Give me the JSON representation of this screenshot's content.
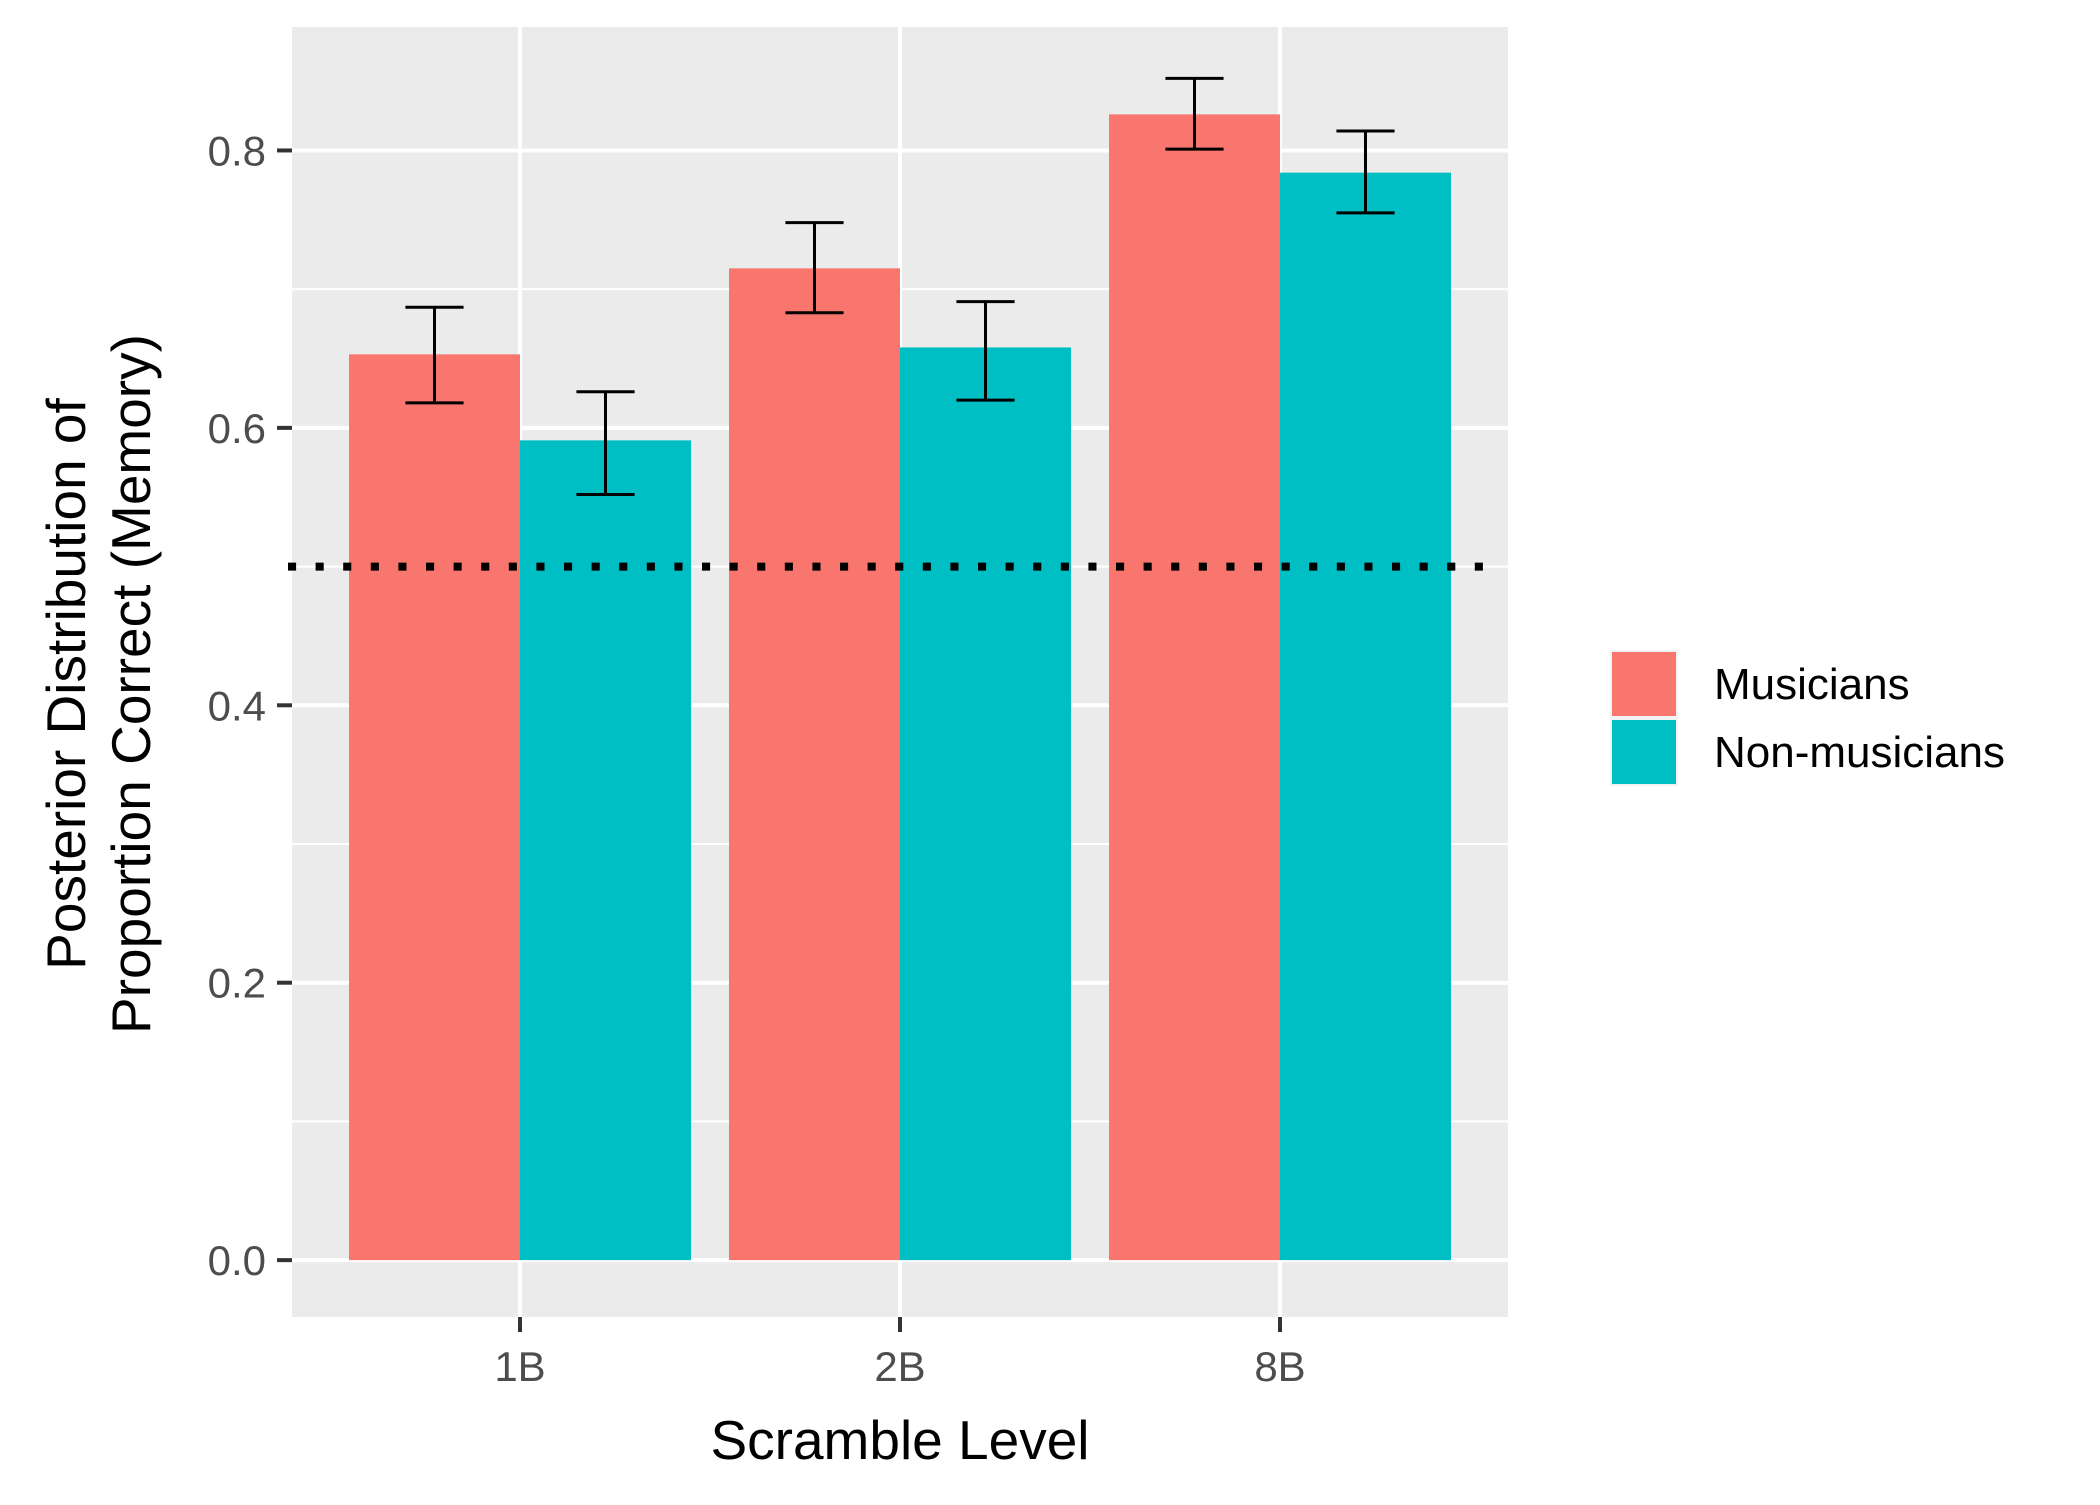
{
  "chart_data": {
    "type": "bar",
    "categories": [
      "1B",
      "2B",
      "8B"
    ],
    "series": [
      {
        "name": "Musicians",
        "color": "#F8766D",
        "values": [
          0.653,
          0.715,
          0.826
        ],
        "error_low": [
          0.618,
          0.683,
          0.801
        ],
        "error_high": [
          0.687,
          0.748,
          0.852
        ]
      },
      {
        "name": "Non-musicians",
        "color": "#00BFC4",
        "values": [
          0.591,
          0.658,
          0.784
        ],
        "error_low": [
          0.552,
          0.62,
          0.755
        ],
        "error_high": [
          0.626,
          0.691,
          0.814
        ]
      }
    ],
    "reference_line": {
      "y": 0.5,
      "style": "dotted",
      "color": "#000000"
    },
    "xlabel": "Scramble Level",
    "ylabel_lines": [
      "Posterior Distribution of",
      "Proportion Correct (Memory)"
    ],
    "ylim": [
      -0.041,
      0.889
    ],
    "yticks": [
      "0.0",
      "0.2",
      "0.4",
      "0.6",
      "0.8"
    ],
    "ytick_values": [
      0.0,
      0.2,
      0.4,
      0.6,
      0.8
    ],
    "grid": true,
    "panel_color": "#EBEBEB",
    "legend_position": "right"
  }
}
